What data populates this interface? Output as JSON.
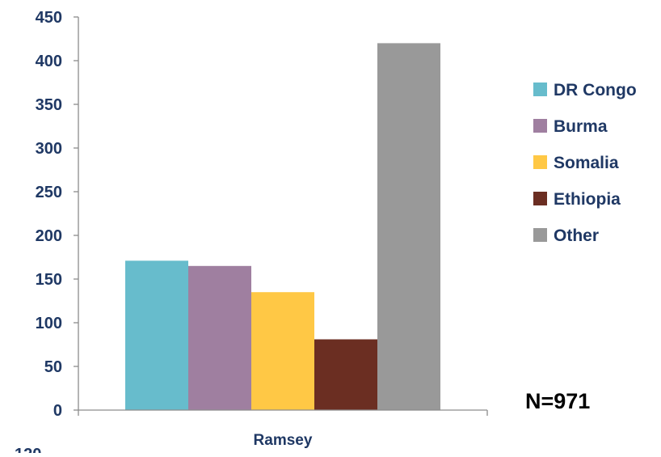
{
  "chart_data": {
    "type": "bar",
    "categories": [
      "Ramsey"
    ],
    "series": [
      {
        "name": "DR Congo",
        "values": [
          171
        ],
        "color": "#67bccc"
      },
      {
        "name": "Burma",
        "values": [
          165
        ],
        "color": "#9f7fa0"
      },
      {
        "name": "Somalia",
        "values": [
          135
        ],
        "color": "#ffc845"
      },
      {
        "name": "Ethiopia",
        "values": [
          81
        ],
        "color": "#6b2e22"
      },
      {
        "name": "Other",
        "values": [
          420
        ],
        "color": "#999999"
      }
    ],
    "title": "",
    "xlabel": "",
    "ylabel": "",
    "ylim": [
      0,
      450
    ],
    "yticks": [
      0,
      50,
      100,
      150,
      200,
      250,
      300,
      350,
      400,
      450
    ],
    "grid": false,
    "legend_position": "right",
    "annotation": "N=971",
    "partial_label": "120"
  }
}
